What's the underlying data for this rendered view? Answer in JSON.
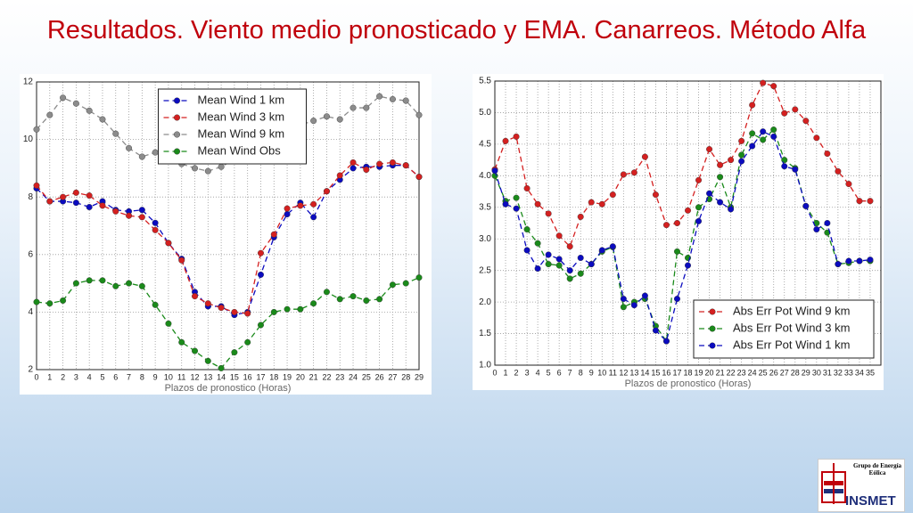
{
  "title": "Resultados. Viento medio pronosticado y EMA. Canarreos. Método Alfa",
  "logo": {
    "group": "Grupo de Energía Eólica",
    "name": "INSMET"
  },
  "chart_data": [
    {
      "type": "line",
      "xlabel": "Plazos de pronostico (Horas)",
      "legend": "upper center",
      "grid": true,
      "x": [
        0,
        1,
        2,
        3,
        4,
        5,
        6,
        7,
        8,
        9,
        10,
        11,
        12,
        13,
        14,
        15,
        16,
        17,
        18,
        19,
        20,
        21,
        22,
        23,
        24,
        25,
        26,
        27,
        28,
        29
      ],
      "xlim": [
        0,
        29
      ],
      "xticks": [
        0,
        1,
        2,
        3,
        4,
        5,
        6,
        7,
        8,
        9,
        10,
        11,
        12,
        13,
        14,
        15,
        16,
        17,
        18,
        19,
        20,
        21,
        22,
        23,
        24,
        25,
        26,
        27,
        28,
        29
      ],
      "ylim": [
        2,
        12
      ],
      "yticks": [
        2,
        4,
        6,
        8,
        10,
        12
      ],
      "series": [
        {
          "name": "Mean Wind 1 km",
          "color": "#0b0bbf",
          "values": [
            8.3,
            7.85,
            7.85,
            7.8,
            7.65,
            7.85,
            7.55,
            7.5,
            7.55,
            7.1,
            6.4,
            5.85,
            4.7,
            4.2,
            4.2,
            3.9,
            4.0,
            5.3,
            6.6,
            7.4,
            7.8,
            7.3,
            8.2,
            8.6,
            9.0,
            9.05,
            9.05,
            9.1,
            9.1,
            8.7
          ]
        },
        {
          "name": "Mean Wind 3 km",
          "color": "#d42020",
          "values": [
            8.4,
            7.85,
            8.0,
            8.15,
            8.05,
            7.7,
            7.5,
            7.35,
            7.3,
            6.85,
            6.4,
            5.8,
            4.55,
            4.3,
            4.15,
            4.0,
            3.95,
            6.05,
            6.7,
            7.6,
            7.7,
            7.75,
            8.2,
            8.75,
            9.2,
            8.95,
            9.15,
            9.2,
            9.1,
            8.7
          ]
        },
        {
          "name": "Mean Wind 9 km",
          "color": "#8c8c8c",
          "values": [
            10.35,
            10.85,
            11.45,
            11.25,
            11.0,
            10.7,
            10.2,
            9.7,
            9.4,
            9.55,
            9.6,
            9.15,
            9.0,
            8.9,
            9.05,
            9.3,
            9.6,
            9.9,
            10.2,
            10.4,
            10.5,
            10.65,
            10.8,
            10.7,
            11.1,
            11.1,
            11.5,
            11.4,
            11.35,
            10.85
          ]
        },
        {
          "name": "Mean Wind Obs",
          "color": "#1a8a1a",
          "values": [
            4.35,
            4.3,
            4.4,
            5.0,
            5.1,
            5.1,
            4.9,
            5.0,
            4.9,
            4.25,
            3.6,
            2.95,
            2.65,
            2.3,
            2.05,
            2.6,
            2.95,
            3.55,
            4.0,
            4.1,
            4.1,
            4.3,
            4.7,
            4.45,
            4.55,
            4.4,
            4.45,
            4.95,
            5.0,
            5.2
          ]
        }
      ]
    },
    {
      "type": "line",
      "xlabel": "Plazos de pronostico (Horas)",
      "legend": "lower right",
      "grid": true,
      "x": [
        0,
        1,
        2,
        3,
        4,
        5,
        6,
        7,
        8,
        9,
        10,
        11,
        12,
        13,
        14,
        15,
        16,
        17,
        18,
        19,
        20,
        21,
        22,
        23,
        24,
        25,
        26,
        27,
        28,
        29,
        30,
        31,
        32,
        33,
        34,
        35
      ],
      "xlim": [
        0,
        36
      ],
      "xticks": [
        0,
        1,
        2,
        3,
        4,
        5,
        6,
        7,
        8,
        9,
        10,
        11,
        12,
        13,
        14,
        15,
        16,
        17,
        18,
        19,
        20,
        21,
        22,
        23,
        24,
        25,
        26,
        27,
        28,
        29,
        30,
        31,
        32,
        33,
        34,
        35
      ],
      "ylim": [
        1.0,
        5.5
      ],
      "yticks": [
        {
          "value": 1.0,
          "label": "1.0"
        },
        1.5,
        {
          "value": 2.0,
          "label": "2.0"
        },
        2.5,
        {
          "value": 3.0,
          "label": "3.0"
        },
        3.5,
        {
          "value": 4.0,
          "label": "4.0"
        },
        4.5,
        {
          "value": 5.0,
          "label": "5.0"
        },
        5.5
      ],
      "series": [
        {
          "name": "Abs Err Pot Wind 9 km",
          "color": "#d42020",
          "values": [
            4.1,
            4.55,
            4.62,
            3.8,
            3.55,
            3.4,
            3.05,
            2.88,
            3.35,
            3.58,
            3.55,
            3.7,
            4.02,
            4.05,
            4.3,
            3.7,
            3.22,
            3.25,
            3.45,
            3.93,
            4.42,
            4.17,
            4.25,
            4.55,
            5.12,
            5.47,
            5.42,
            4.99,
            5.05,
            4.87,
            4.6,
            4.35,
            4.07,
            3.87,
            3.6,
            3.6
          ]
        },
        {
          "name": "Abs Err Pot Wind 3 km",
          "color": "#1a8a1a",
          "values": [
            4.0,
            3.6,
            3.65,
            3.15,
            2.93,
            2.6,
            2.58,
            2.37,
            2.45,
            2.6,
            2.8,
            2.87,
            1.92,
            2.0,
            2.05,
            1.62,
            1.38,
            2.8,
            2.7,
            3.5,
            3.63,
            3.98,
            3.5,
            4.33,
            4.67,
            4.57,
            4.73,
            4.25,
            4.12,
            3.52,
            3.25,
            3.1,
            2.6,
            2.62,
            2.65,
            2.65
          ]
        },
        {
          "name": "Abs Err Pot Wind 1 km",
          "color": "#0b0bbf",
          "values": [
            4.08,
            3.55,
            3.48,
            2.82,
            2.53,
            2.75,
            2.68,
            2.5,
            2.7,
            2.6,
            2.82,
            2.88,
            2.05,
            1.95,
            2.1,
            1.55,
            1.38,
            2.05,
            2.58,
            3.28,
            3.72,
            3.58,
            3.47,
            4.23,
            4.47,
            4.7,
            4.62,
            4.15,
            4.1,
            3.52,
            3.15,
            3.25,
            2.6,
            2.65,
            2.65,
            2.67
          ]
        }
      ]
    }
  ]
}
